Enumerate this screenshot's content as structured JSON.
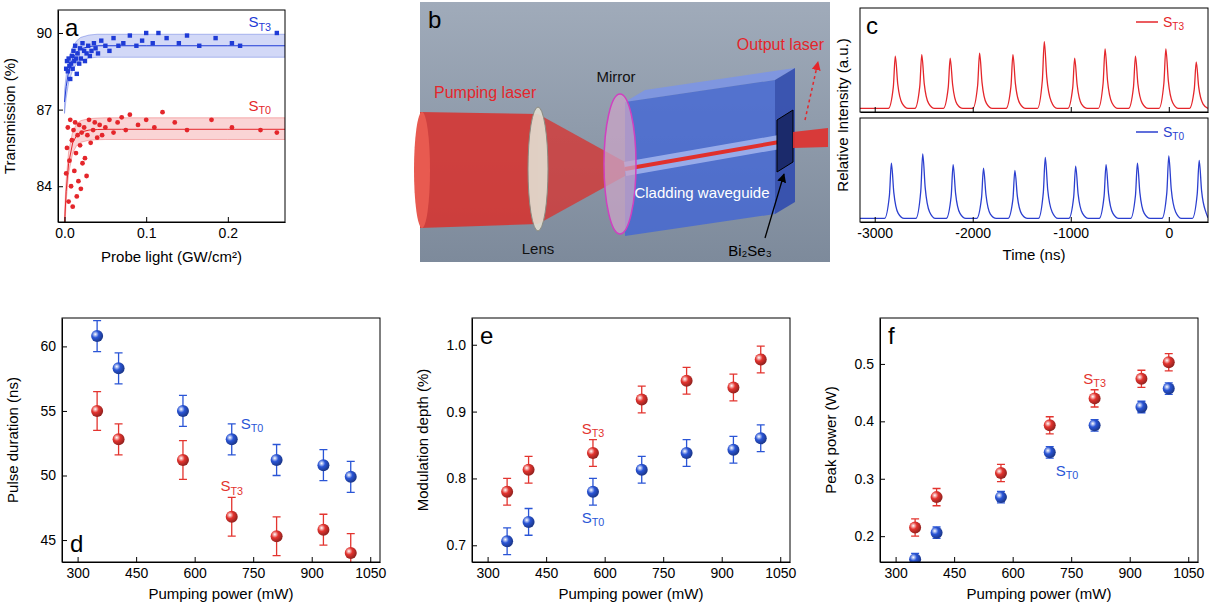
{
  "chart_data": [
    {
      "type": "scatter",
      "panel_label": "a",
      "xlabel": "Probe light (GW/cm²)",
      "ylabel": "Transmission (%)",
      "xlim": [
        -0.008,
        0.27
      ],
      "xticks": [
        {
          "value": 0,
          "label": "0.0"
        },
        0.1,
        0.2
      ],
      "ylim": [
        82.6,
        90.9
      ],
      "yticks": [
        84,
        87,
        90
      ],
      "series": [
        {
          "name": "ST3",
          "color": "#1f3bd6",
          "marker": "square",
          "line_style": "solid",
          "x": [
            0.002,
            0.003,
            0.004,
            0.005,
            0.006,
            0.007,
            0.008,
            0.009,
            0.01,
            0.011,
            0.012,
            0.013,
            0.014,
            0.015,
            0.016,
            0.018,
            0.019,
            0.02,
            0.022,
            0.024,
            0.025,
            0.027,
            0.029,
            0.031,
            0.033,
            0.036,
            0.038,
            0.041,
            0.045,
            0.05,
            0.055,
            0.06,
            0.066,
            0.072,
            0.08,
            0.088,
            0.095,
            0.1,
            0.108,
            0.115,
            0.125,
            0.14,
            0.15,
            0.165,
            0.185,
            0.205,
            0.215,
            0.26
          ],
          "values": [
            88.6,
            88.9,
            88.5,
            89.0,
            88.7,
            88.2,
            88.8,
            89.1,
            88.6,
            89.3,
            88.9,
            89.5,
            89.0,
            88.4,
            89.2,
            88.8,
            89.4,
            89.0,
            89.6,
            89.3,
            88.9,
            89.2,
            89.5,
            89.1,
            89.3,
            89.6,
            89.4,
            89.2,
            89.7,
            89.5,
            89.3,
            89.8,
            89.5,
            89.6,
            89.9,
            89.5,
            89.7,
            90.0,
            89.6,
            90.0,
            89.8,
            89.6,
            89.9,
            89.5,
            89.8,
            89.6,
            89.5,
            90.0
          ],
          "fit_x": [
            0,
            0.002,
            0.005,
            0.01,
            0.015,
            0.02,
            0.03,
            0.04,
            0.05,
            0.07,
            0.1,
            0.15,
            0.2,
            0.27
          ],
          "fit": [
            87.3,
            87.9,
            88.5,
            89.0,
            89.25,
            89.38,
            89.47,
            89.5,
            89.5,
            89.5,
            89.5,
            89.5,
            89.5,
            89.5
          ],
          "band_lower": [
            86.85,
            87.45,
            88.05,
            88.55,
            88.8,
            88.93,
            89.02,
            89.05,
            89.05,
            89.05,
            89.05,
            89.05,
            89.05,
            89.05
          ],
          "band_upper": [
            87.75,
            88.35,
            88.95,
            89.45,
            89.7,
            89.83,
            89.92,
            89.95,
            89.95,
            89.95,
            89.95,
            89.95,
            89.95,
            89.95
          ]
        },
        {
          "name": "ST0",
          "color": "#e4262b",
          "marker": "circle",
          "line_style": "solid",
          "x": [
            0.002,
            0.003,
            0.004,
            0.005,
            0.006,
            0.007,
            0.008,
            0.009,
            0.01,
            0.011,
            0.012,
            0.013,
            0.014,
            0.015,
            0.016,
            0.017,
            0.018,
            0.019,
            0.02,
            0.021,
            0.022,
            0.024,
            0.025,
            0.027,
            0.028,
            0.03,
            0.032,
            0.035,
            0.037,
            0.04,
            0.043,
            0.046,
            0.05,
            0.055,
            0.06,
            0.065,
            0.07,
            0.075,
            0.08,
            0.09,
            0.1,
            0.11,
            0.12,
            0.135,
            0.15,
            0.18,
            0.205,
            0.24,
            0.26
          ],
          "values": [
            84.5,
            85.5,
            86.3,
            83.4,
            85.0,
            86.6,
            84.0,
            85.8,
            83.2,
            86.2,
            84.6,
            86.5,
            85.3,
            83.6,
            86.0,
            84.2,
            86.4,
            85.6,
            83.9,
            86.1,
            84.9,
            86.3,
            85.1,
            84.4,
            86.0,
            86.6,
            85.7,
            86.2,
            86.5,
            85.9,
            86.4,
            86.0,
            86.3,
            86.6,
            86.1,
            86.5,
            86.7,
            86.2,
            86.8,
            86.4,
            86.6,
            86.3,
            86.9,
            86.5,
            86.2,
            86.6,
            86.3,
            86.2,
            86.1
          ],
          "fit_x": [
            0,
            0.002,
            0.005,
            0.01,
            0.015,
            0.02,
            0.03,
            0.04,
            0.05,
            0.07,
            0.1,
            0.15,
            0.2,
            0.27
          ],
          "fit": [
            82.5,
            83.8,
            84.9,
            85.7,
            86.0,
            86.12,
            86.2,
            86.22,
            86.23,
            86.23,
            86.23,
            86.23,
            86.23,
            86.23
          ],
          "band_lower": [
            82.1,
            83.4,
            84.5,
            85.3,
            85.6,
            85.72,
            85.8,
            85.82,
            85.83,
            85.83,
            85.83,
            85.83,
            85.83,
            85.83
          ],
          "band_upper": [
            82.95,
            84.25,
            85.35,
            86.15,
            86.45,
            86.57,
            86.65,
            86.67,
            86.68,
            86.68,
            86.68,
            86.68,
            86.68,
            86.68
          ]
        }
      ]
    },
    {
      "type": "line",
      "panel_label": "c",
      "xlabel": "Time (ns)",
      "ylabel": "Relative Intensity (a.u.)",
      "xlim": [
        -3150,
        400
      ],
      "xticks": [
        -3000,
        -2000,
        -1000,
        0
      ],
      "ylim": [
        0,
        1.45
      ],
      "tick_labels": "x",
      "legend": "upper right",
      "series": [
        {
          "name": "ST3",
          "color": "#e4262b",
          "x": [
            -3150,
            -2860,
            -2810,
            -2790,
            -2765,
            -2720,
            -2660,
            -2590,
            -2540,
            -2520,
            -2495,
            -2450,
            -2390,
            -2300,
            -2250,
            -2230,
            -2205,
            -2160,
            -2100,
            -2000,
            -1950,
            -1930,
            -1905,
            -1860,
            -1800,
            -1660,
            -1610,
            -1590,
            -1565,
            -1520,
            -1460,
            -1340,
            -1290,
            -1270,
            -1245,
            -1200,
            -1140,
            -1030,
            -980,
            -960,
            -935,
            -890,
            -830,
            -720,
            -670,
            -650,
            -625,
            -580,
            -520,
            -410,
            -360,
            -340,
            -315,
            -270,
            -210,
            -100,
            -50,
            -30,
            -5,
            40,
            100,
            210,
            260,
            280,
            305,
            350,
            400
          ],
          "values": [
            0.05,
            0.05,
            0.35,
            0.78,
            0.39,
            0.12,
            0.05,
            0.05,
            0.36,
            0.8,
            0.4,
            0.12,
            0.05,
            0.05,
            0.34,
            0.75,
            0.38,
            0.11,
            0.05,
            0.05,
            0.37,
            0.82,
            0.41,
            0.12,
            0.05,
            0.05,
            0.36,
            0.8,
            0.4,
            0.12,
            0.05,
            0.05,
            0.44,
            0.98,
            0.49,
            0.15,
            0.05,
            0.05,
            0.34,
            0.75,
            0.38,
            0.11,
            0.05,
            0.05,
            0.4,
            0.88,
            0.44,
            0.13,
            0.05,
            0.05,
            0.35,
            0.78,
            0.39,
            0.12,
            0.05,
            0.05,
            0.4,
            0.88,
            0.44,
            0.13,
            0.05,
            0.05,
            0.32,
            0.7,
            0.35,
            0.11,
            0.05
          ]
        },
        {
          "name": "ST0",
          "color": "#2b3fcf",
          "x": [
            -3150,
            -2900,
            -2850,
            -2830,
            -2805,
            -2760,
            -2700,
            -2580,
            -2530,
            -2510,
            -2485,
            -2440,
            -2380,
            -2270,
            -2220,
            -2200,
            -2175,
            -2130,
            -2070,
            -1960,
            -1910,
            -1890,
            -1865,
            -1820,
            -1760,
            -1640,
            -1590,
            -1570,
            -1545,
            -1500,
            -1440,
            -1330,
            -1280,
            -1260,
            -1235,
            -1190,
            -1130,
            -1020,
            -970,
            -950,
            -925,
            -880,
            -820,
            -710,
            -660,
            -640,
            -615,
            -570,
            -510,
            -390,
            -340,
            -320,
            -295,
            -250,
            -190,
            -70,
            -20,
            0,
            25,
            70,
            130,
            240,
            290,
            310,
            335,
            380,
            400
          ],
          "values": [
            0.05,
            0.05,
            0.37,
            0.82,
            0.41,
            0.12,
            0.05,
            0.05,
            0.43,
            0.95,
            0.48,
            0.14,
            0.05,
            0.05,
            0.36,
            0.8,
            0.4,
            0.12,
            0.05,
            0.05,
            0.34,
            0.75,
            0.38,
            0.11,
            0.05,
            0.05,
            0.32,
            0.72,
            0.36,
            0.11,
            0.05,
            0.05,
            0.41,
            0.9,
            0.45,
            0.14,
            0.05,
            0.05,
            0.35,
            0.78,
            0.39,
            0.12,
            0.05,
            0.05,
            0.36,
            0.8,
            0.4,
            0.12,
            0.05,
            0.05,
            0.37,
            0.82,
            0.41,
            0.12,
            0.05,
            0.05,
            0.41,
            0.92,
            0.46,
            0.14,
            0.05,
            0.05,
            0.39,
            0.86,
            0.43,
            0.13,
            0.06
          ]
        }
      ]
    },
    {
      "type": "scatter",
      "panel_label": "d",
      "xlabel": "Pumping power (mW)",
      "ylabel": "Pulse duration (ns)",
      "xlim": [
        260,
        1075
      ],
      "xticks": [
        300,
        450,
        600,
        750,
        900,
        1050
      ],
      "ylim": [
        43.3,
        62.2
      ],
      "yticks": [
        45,
        50,
        55,
        60
      ],
      "x": [
        350,
        405,
        570,
        695,
        810,
        930,
        1000
      ],
      "series": [
        {
          "name": "ST3",
          "color": "#e3342f",
          "marker": "circle",
          "values": [
            55.0,
            52.8,
            51.2,
            46.8,
            45.3,
            45.8,
            44.0
          ],
          "errors": [
            1.5,
            1.2,
            1.5,
            1.5,
            1.5,
            1.2,
            1.5
          ]
        },
        {
          "name": "ST0",
          "color": "#2a55d6",
          "marker": "circle",
          "values": [
            60.8,
            58.3,
            55.0,
            52.8,
            51.2,
            50.8,
            49.9
          ],
          "errors": [
            1.2,
            1.2,
            1.2,
            1.2,
            1.2,
            1.2,
            1.2
          ]
        }
      ]
    },
    {
      "type": "scatter",
      "panel_label": "e",
      "xlabel": "Pumping power (mW)",
      "ylabel": "Modulation depth (%)",
      "xlim": [
        260,
        1075
      ],
      "xticks": [
        300,
        450,
        600,
        750,
        900,
        1050
      ],
      "ylim": [
        0.675,
        1.04
      ],
      "yticks": [
        0.7,
        0.8,
        0.9,
        {
          "value": 1,
          "label": "1.0"
        }
      ],
      "x": [
        350,
        405,
        570,
        695,
        810,
        930,
        1000
      ],
      "series": [
        {
          "name": "ST3",
          "color": "#e3342f",
          "marker": "circle",
          "values": [
            0.78,
            0.813,
            0.838,
            0.918,
            0.946,
            0.936,
            0.978
          ],
          "errors": [
            0.02,
            0.02,
            0.02,
            0.02,
            0.02,
            0.02,
            0.02
          ]
        },
        {
          "name": "ST0",
          "color": "#2a55d6",
          "marker": "circle",
          "values": [
            0.706,
            0.735,
            0.78,
            0.813,
            0.838,
            0.843,
            0.86
          ],
          "errors": [
            0.02,
            0.02,
            0.02,
            0.02,
            0.02,
            0.02,
            0.02
          ]
        }
      ]
    },
    {
      "type": "scatter",
      "panel_label": "f",
      "xlabel": "Pumping power (mW)",
      "ylabel": "Peak power (W)",
      "xlim": [
        260,
        1075
      ],
      "xticks": [
        300,
        450,
        600,
        750,
        900,
        1050
      ],
      "ylim": [
        0.155,
        0.58
      ],
      "yticks": [
        0.2,
        0.3,
        0.4,
        0.5
      ],
      "x": [
        350,
        405,
        570,
        695,
        810,
        930,
        1000
      ],
      "series": [
        {
          "name": "ST3",
          "color": "#e3342f",
          "marker": "circle",
          "values": [
            0.215,
            0.268,
            0.31,
            0.393,
            0.44,
            0.474,
            0.503
          ],
          "errors": [
            0.015,
            0.015,
            0.015,
            0.015,
            0.015,
            0.015,
            0.015
          ]
        },
        {
          "name": "ST0",
          "color": "#2a55d6",
          "marker": "circle",
          "values": [
            0.16,
            0.206,
            0.268,
            0.346,
            0.393,
            0.425,
            0.457
          ],
          "errors": [
            0.01,
            0.01,
            0.01,
            0.01,
            0.01,
            0.01,
            0.01
          ]
        }
      ]
    }
  ],
  "diagram": {
    "panel_label": "b",
    "pumping_laser": "Pumping laser",
    "lens": "Lens",
    "mirror": "Mirror",
    "waveguide": "Cladding waveguide",
    "saturable_absorber": "Bi₂Se₃",
    "output_laser": "Output laser"
  }
}
